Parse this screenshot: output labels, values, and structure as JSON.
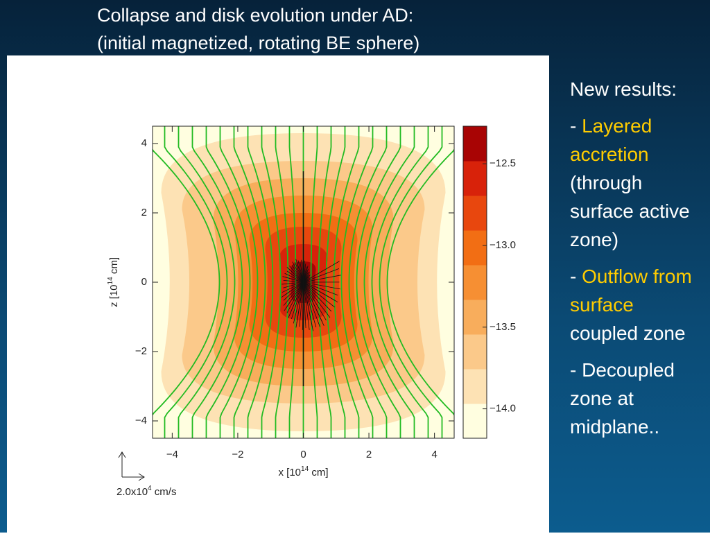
{
  "slide": {
    "title": [
      "Collapse and disk evolution under  AD:",
      "(initial magnetized, rotating BE sphere)"
    ],
    "figure": {
      "type": "contour",
      "xlim": [
        -4.6,
        4.6
      ],
      "ylim": [
        -4.5,
        4.5
      ],
      "xticks": [
        {
          "value": -4,
          "label": "−4"
        },
        {
          "value": -2,
          "label": "−2"
        },
        0,
        2,
        4
      ],
      "yticks": [
        {
          "value": -4,
          "label": "−4"
        },
        {
          "value": -2,
          "label": "−2"
        },
        0,
        2,
        4
      ],
      "xlabel": [
        "x [10",
        "14",
        " cm]"
      ],
      "ylabel": [
        "z [10",
        "14",
        " cm]"
      ],
      "vector_scale": [
        "2.0x10",
        "4",
        " cm/s"
      ],
      "clim": [
        -14.18,
        -12.27
      ],
      "cticks": [
        {
          "value": -12.5,
          "label": "−12.5"
        },
        {
          "value": -13.0,
          "label": "−13.0"
        },
        {
          "value": -13.5,
          "label": "−13.5"
        },
        {
          "value": -14.0,
          "label": "−14.0"
        }
      ],
      "colors": [
        "#fffee0",
        "#fde2b4",
        "#fbc98a",
        "#f8ad5c",
        "#f68f33",
        "#f26e14",
        "#e8470e",
        "#d8220a",
        "#a80404"
      ],
      "field_color": "#22bb22"
    },
    "notes": {
      "heading": "New results:",
      "items": [
        [
          {
            "text": "- "
          },
          {
            "text": "Layered accretion",
            "color": "#ffcc00"
          },
          {
            "text": " (through surface active zone)"
          }
        ],
        [
          {
            "text": "- "
          },
          {
            "text": "Outflow from surface",
            "color": "#ffcc00"
          },
          {
            "text": " coupled zone"
          }
        ],
        [
          {
            "text": "- Decoupled zone at midplane.."
          }
        ]
      ]
    }
  }
}
